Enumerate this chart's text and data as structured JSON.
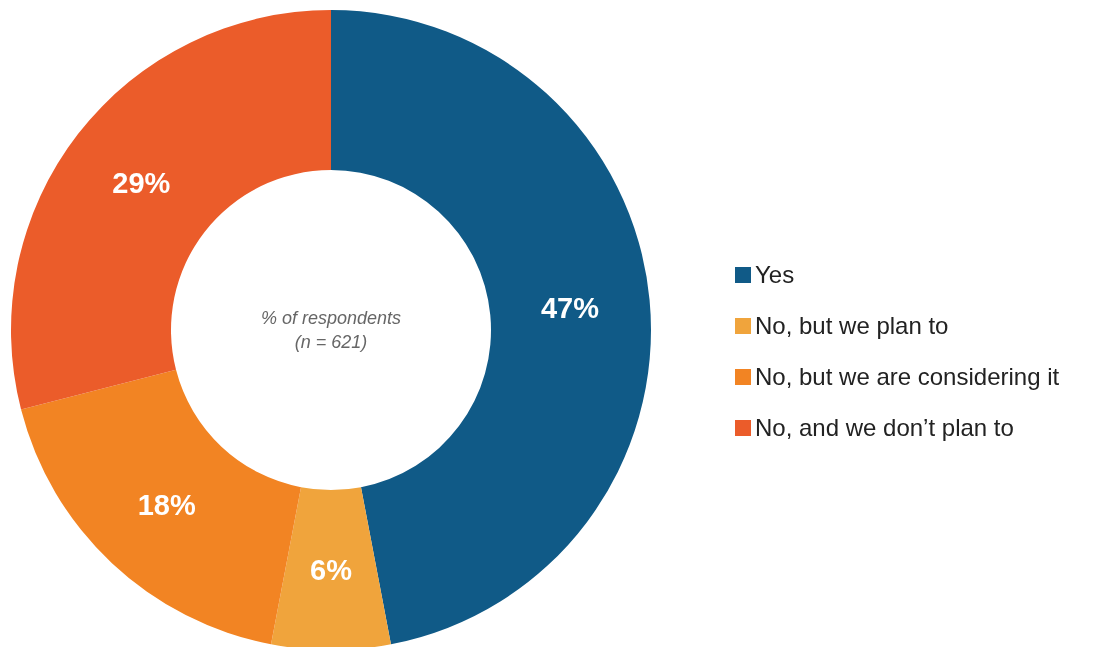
{
  "chart_data": {
    "type": "donut",
    "categories": [
      "Yes",
      "No, but we plan to",
      "No, but we are considering it",
      "No, and we don’t plan to"
    ],
    "values": [
      47,
      6,
      18,
      29
    ],
    "colors": [
      "#105a87",
      "#f0a43c",
      "#f28423",
      "#eb5c2a"
    ],
    "value_labels": [
      "47%",
      "6%",
      "18%",
      "29%"
    ],
    "legend": "right",
    "annotations": [
      "% of respondents",
      "(n = 621)"
    ]
  }
}
